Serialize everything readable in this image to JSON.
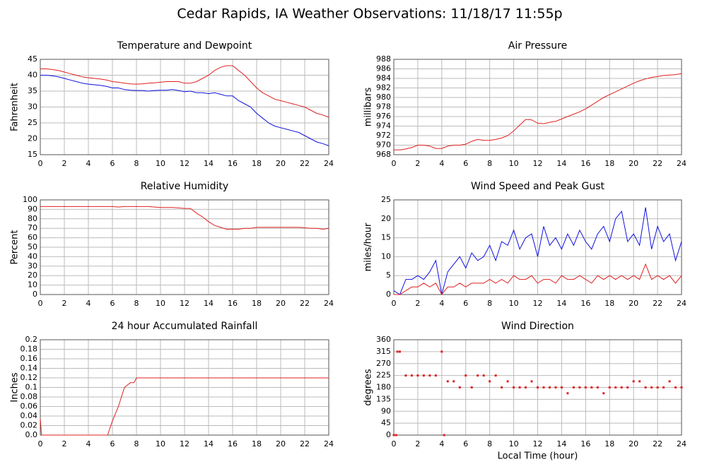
{
  "title": "Cedar Rapids, IA Weather Observations: 11/18/17 11:55p",
  "chart_data": [
    {
      "type": "line",
      "title": "Temperature and Dewpoint",
      "ylabel": "Fahrenheit",
      "grid": true,
      "xlim": [
        0,
        24
      ],
      "xticks": [
        0,
        2,
        4,
        6,
        8,
        10,
        12,
        14,
        16,
        18,
        20,
        22,
        24
      ],
      "ylim": [
        15,
        45
      ],
      "yticks": [
        15,
        20,
        25,
        30,
        35,
        40,
        45
      ],
      "x": [
        0,
        0.5,
        1,
        1.5,
        2,
        2.5,
        3,
        3.5,
        4,
        4.5,
        5,
        5.5,
        6,
        6.5,
        7,
        7.5,
        8,
        8.5,
        9,
        9.5,
        10,
        10.5,
        11,
        11.5,
        12,
        12.5,
        13,
        13.5,
        14,
        14.5,
        15,
        15.5,
        16,
        16.5,
        17,
        17.5,
        18,
        18.5,
        19,
        19.5,
        20,
        20.5,
        21,
        21.5,
        22,
        22.5,
        23,
        23.5,
        24
      ],
      "series": [
        {
          "color": "#e02020",
          "values": [
            42,
            42,
            41.8,
            41.5,
            41,
            40.5,
            40,
            39.5,
            39.2,
            39,
            38.8,
            38.5,
            38,
            37.8,
            37.5,
            37.3,
            37.2,
            37.3,
            37.5,
            37.6,
            37.8,
            38,
            38,
            38,
            37.5,
            37.5,
            38,
            39,
            40,
            41.5,
            42.5,
            43,
            43,
            41.5,
            40,
            38,
            36,
            34.5,
            33.5,
            32.5,
            32,
            31.5,
            31,
            30.5,
            30,
            29,
            28,
            27.5,
            26.8
          ]
        },
        {
          "color": "#1010e0",
          "values": [
            40,
            40,
            39.8,
            39.5,
            39,
            38.5,
            38,
            37.5,
            37.2,
            37,
            36.8,
            36.5,
            36,
            36,
            35.5,
            35.3,
            35.2,
            35.2,
            35,
            35.2,
            35.3,
            35.3,
            35.5,
            35.2,
            34.8,
            35,
            34.5,
            34.5,
            34.2,
            34.5,
            34,
            33.5,
            33.5,
            32,
            31,
            30,
            28,
            26.5,
            25,
            24,
            23.5,
            23,
            22.5,
            22,
            21,
            20,
            19,
            18.5,
            17.8
          ]
        }
      ]
    },
    {
      "type": "line",
      "title": "Air Pressure",
      "ylabel": "millibars",
      "grid": true,
      "xlim": [
        0,
        24
      ],
      "xticks": [
        0,
        2,
        4,
        6,
        8,
        10,
        12,
        14,
        16,
        18,
        20,
        22,
        24
      ],
      "ylim": [
        968,
        988
      ],
      "yticks": [
        968,
        970,
        972,
        974,
        976,
        978,
        980,
        982,
        984,
        986,
        988
      ],
      "x": [
        0,
        0.5,
        1,
        1.5,
        2,
        2.5,
        3,
        3.5,
        4,
        4.5,
        5,
        5.5,
        6,
        6.5,
        7,
        7.5,
        8,
        8.5,
        9,
        9.5,
        10,
        10.5,
        11,
        11.5,
        12,
        12.5,
        13,
        13.5,
        14,
        14.5,
        15,
        15.5,
        16,
        16.5,
        17,
        17.5,
        18,
        18.5,
        19,
        19.5,
        20,
        20.5,
        21,
        21.5,
        22,
        22.5,
        23,
        23.5,
        24
      ],
      "series": [
        {
          "color": "#e02020",
          "values": [
            969,
            969,
            969.2,
            969.5,
            970,
            970,
            969.8,
            969.3,
            969.3,
            969.8,
            970,
            970,
            970.2,
            970.8,
            971.2,
            971,
            971,
            971.2,
            971.5,
            972,
            973,
            974.2,
            975.4,
            975.3,
            974.6,
            974.5,
            974.8,
            975,
            975.5,
            976,
            976.5,
            977,
            977.6,
            978.4,
            979.2,
            980,
            980.6,
            981.2,
            981.8,
            982.4,
            983,
            983.5,
            983.9,
            984.2,
            984.4,
            984.6,
            984.7,
            984.8,
            985
          ]
        }
      ]
    },
    {
      "type": "line",
      "title": "Relative Humidity",
      "ylabel": "Percent",
      "grid": true,
      "xlim": [
        0,
        24
      ],
      "xticks": [
        0,
        2,
        4,
        6,
        8,
        10,
        12,
        14,
        16,
        18,
        20,
        22,
        24
      ],
      "ylim": [
        0,
        100
      ],
      "yticks": [
        0,
        10,
        20,
        30,
        40,
        50,
        60,
        70,
        80,
        90,
        100
      ],
      "x": [
        0,
        0.5,
        1,
        1.5,
        2,
        2.5,
        3,
        3.5,
        4,
        4.5,
        5,
        5.5,
        6,
        6.5,
        7,
        7.5,
        8,
        8.5,
        9,
        9.5,
        10,
        10.5,
        11,
        11.5,
        12,
        12.5,
        13,
        13.5,
        14,
        14.5,
        15,
        15.5,
        16,
        16.5,
        17,
        17.5,
        18,
        18.5,
        19,
        19.5,
        20,
        20.5,
        21,
        21.5,
        22,
        22.5,
        23,
        23.5,
        24
      ],
      "series": [
        {
          "color": "#e02020",
          "values": [
            93,
            93,
            93,
            93,
            93,
            93,
            93,
            93,
            93,
            93,
            93,
            93,
            93,
            92.5,
            93,
            93,
            93,
            93,
            93,
            92.5,
            92,
            92,
            92,
            91.5,
            91,
            91,
            86,
            82,
            77,
            73,
            71,
            69,
            69,
            69,
            70,
            70,
            71,
            71,
            71,
            71,
            71,
            71,
            71,
            71,
            70.5,
            70,
            70,
            69,
            70
          ]
        }
      ]
    },
    {
      "type": "line",
      "title": "Wind Speed and Peak Gust",
      "ylabel": "miles/hour",
      "grid": true,
      "xlim": [
        0,
        24
      ],
      "xticks": [
        0,
        2,
        4,
        6,
        8,
        10,
        12,
        14,
        16,
        18,
        20,
        22,
        24
      ],
      "ylim": [
        0,
        25
      ],
      "yticks": [
        0,
        5,
        10,
        15,
        20,
        25
      ],
      "x": [
        0,
        0.5,
        1,
        1.5,
        2,
        2.5,
        3,
        3.5,
        4,
        4.5,
        5,
        5.5,
        6,
        6.5,
        7,
        7.5,
        8,
        8.5,
        9,
        9.5,
        10,
        10.5,
        11,
        11.5,
        12,
        12.5,
        13,
        13.5,
        14,
        14.5,
        15,
        15.5,
        16,
        16.5,
        17,
        17.5,
        18,
        18.5,
        19,
        19.5,
        20,
        20.5,
        21,
        21.5,
        22,
        22.5,
        23,
        23.5,
        24
      ],
      "series": [
        {
          "color": "#1010e0",
          "values": [
            1,
            0,
            4,
            4,
            5,
            4,
            6,
            9,
            0,
            6,
            8,
            10,
            7,
            11,
            9,
            10,
            13,
            9,
            14,
            13,
            17,
            12,
            15,
            16,
            10,
            18,
            13,
            15,
            12,
            16,
            13,
            17,
            14,
            12,
            16,
            18,
            14,
            20,
            22,
            14,
            16,
            13,
            23,
            12,
            18,
            14,
            16,
            9,
            14
          ]
        },
        {
          "color": "#e02020",
          "values": [
            0,
            0,
            1,
            2,
            2,
            3,
            2,
            3,
            0,
            2,
            2,
            3,
            2,
            3,
            3,
            3,
            4,
            3,
            4,
            3,
            5,
            4,
            4,
            5,
            3,
            4,
            4,
            3,
            5,
            4,
            4,
            5,
            4,
            3,
            5,
            4,
            5,
            4,
            5,
            4,
            5,
            4,
            8,
            4,
            5,
            4,
            5,
            3,
            5
          ]
        }
      ]
    },
    {
      "type": "line",
      "title": "24 hour Accumulated Rainfall",
      "ylabel": "Inches",
      "grid": true,
      "xlim": [
        0,
        24
      ],
      "xticks": [
        0,
        2,
        4,
        6,
        8,
        10,
        12,
        14,
        16,
        18,
        20,
        22,
        24
      ],
      "ylim": [
        0,
        0.2
      ],
      "yticks": [
        {
          "value": 0,
          "label": "0.0"
        },
        0.02,
        0.04,
        0.06,
        0.08,
        0.1,
        0.12,
        0.14,
        0.16,
        0.18,
        0.2
      ],
      "x": [
        0,
        0.1,
        5.6,
        6,
        6.5,
        7,
        7.5,
        7.8,
        8,
        24
      ],
      "series": [
        {
          "color": "#e02020",
          "values": [
            0.035,
            0,
            0,
            0.03,
            0.06,
            0.1,
            0.11,
            0.11,
            0.12,
            0.12
          ]
        }
      ]
    },
    {
      "type": "scatter",
      "title": "Wind Direction",
      "ylabel": "degrees",
      "xlabel": "Local Time (hour)",
      "grid": true,
      "xlim": [
        0,
        24
      ],
      "xticks": [
        0,
        2,
        4,
        6,
        8,
        10,
        12,
        14,
        16,
        18,
        20,
        22,
        24
      ],
      "ylim": [
        0,
        360
      ],
      "yticks": [
        0,
        45,
        90,
        135,
        180,
        225,
        270,
        315,
        360
      ],
      "x": [
        0,
        0.2,
        0.3,
        0.5,
        1,
        1.5,
        2,
        2.5,
        3,
        3.5,
        4,
        4.2,
        4.5,
        5,
        5.5,
        6,
        6.5,
        7,
        7.5,
        8,
        8.5,
        9,
        9.5,
        10,
        10.5,
        11,
        11.5,
        12,
        12.5,
        13,
        13.5,
        14,
        14.5,
        15,
        15.5,
        16,
        16.5,
        17,
        17.5,
        18,
        18.5,
        19,
        19.5,
        20,
        20.5,
        21,
        21.5,
        22,
        22.5,
        23,
        23.5,
        24
      ],
      "series": [
        {
          "color": "#e02020",
          "values": [
            0,
            0,
            315,
            315,
            225,
            225,
            225,
            225,
            225,
            225,
            315,
            0,
            203,
            203,
            180,
            225,
            180,
            225,
            225,
            203,
            225,
            180,
            203,
            180,
            180,
            180,
            203,
            180,
            180,
            180,
            180,
            180,
            158,
            180,
            180,
            180,
            180,
            180,
            158,
            180,
            180,
            180,
            180,
            203,
            203,
            180,
            180,
            180,
            180,
            203,
            180,
            180
          ]
        }
      ]
    }
  ]
}
